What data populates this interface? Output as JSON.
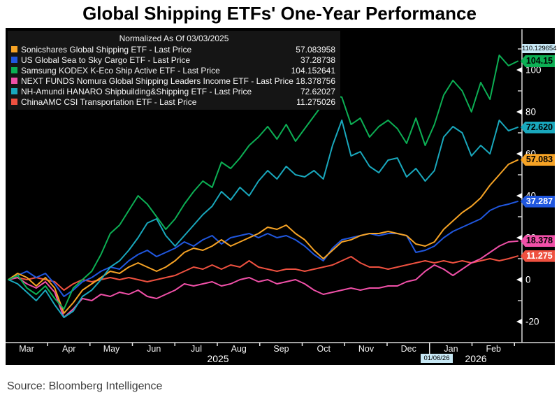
{
  "title": "Global Shipping ETFs' One-Year Performance",
  "source": "Source: Bloomberg Intelligence",
  "legend": {
    "header": "Normalized As Of 03/03/2025",
    "items": [
      {
        "label": "Sonicshares Global Shipping ETF - Last Price",
        "value": "57.083958",
        "color": "#f6a325"
      },
      {
        "label": "US Global Sea to Sky Cargo ETF - Last Price",
        "value": "37.28738",
        "color": "#2057df"
      },
      {
        "label": "Samsung KODEX K-Eco Ship Active ETF - Last Price",
        "value": "104.152641",
        "color": "#0caf54"
      },
      {
        "label": "NEXT FUNDS Nomura Global Shipping Leaders Income ETF - Last Price",
        "value": "18.378756",
        "color": "#f050a8"
      },
      {
        "label": "NH-Amundi HANARO Shipbuilding&Shipping ETF - Last Price",
        "value": "72.62027",
        "color": "#19a8bd"
      },
      {
        "label": "ChinaAMC CSI Transportation ETF - Last Price",
        "value": "11.275026",
        "color": "#ef5140"
      }
    ]
  },
  "chart_data": {
    "type": "line",
    "title": "Global Shipping ETFs' One-Year Performance",
    "normalized_as_of": "03/03/2025",
    "x_axis": {
      "months": [
        "Mar",
        "Apr",
        "May",
        "Jun",
        "Jul",
        "Aug",
        "Sep",
        "Oct",
        "Nov",
        "Dec",
        "Jan",
        "Feb"
      ],
      "years": [
        "2025",
        "2026"
      ]
    },
    "y_axis": {
      "major_ticks": [
        100,
        80,
        60,
        40,
        20,
        0,
        -20
      ],
      "minor_ticks": [
        110,
        90,
        70,
        50,
        30,
        10,
        -10
      ]
    },
    "ylim": [
      -25,
      115
    ],
    "tracker": {
      "date": "01/06/26",
      "value": "110.129654"
    },
    "z_order": [
      5,
      3,
      1,
      0,
      4,
      2
    ],
    "series": [
      {
        "name": "Sonicshares Global Shipping ETF",
        "color": "#f6a325",
        "label_text_color": "#000000",
        "last_price": 57.083958,
        "axis_label": "57.083",
        "values": [
          0,
          3,
          1,
          -3,
          1,
          -4,
          -16,
          -11,
          -5,
          -2,
          1,
          4,
          3,
          6,
          8,
          6,
          4,
          6,
          9,
          13,
          15,
          14,
          16,
          19,
          16,
          18,
          20,
          22,
          25,
          24,
          26,
          22,
          19,
          14,
          10,
          14,
          18,
          19,
          21,
          22,
          22,
          23,
          22,
          21,
          17,
          16,
          18,
          24,
          28,
          32,
          35,
          39,
          45,
          50,
          55,
          57.08
        ]
      },
      {
        "name": "US Global Sea to Sky Cargo ETF",
        "color": "#2057df",
        "label_text_color": "#ffffff",
        "last_price": 37.28738,
        "axis_label": "37.287",
        "values": [
          0,
          2,
          4,
          1,
          3,
          -2,
          -8,
          -5,
          -1,
          1,
          4,
          6,
          5,
          9,
          12,
          14,
          11,
          13,
          15,
          18,
          16,
          19,
          21,
          17,
          20,
          21,
          22,
          20,
          22,
          20,
          21,
          19,
          16,
          12,
          9,
          15,
          19,
          20,
          21,
          22,
          21,
          22,
          22,
          21,
          13,
          14,
          16,
          20,
          23,
          25,
          27,
          29,
          33,
          35,
          36,
          37.29
        ]
      },
      {
        "name": "Samsung KODEX K-Eco Ship Active ETF",
        "color": "#0caf54",
        "label_text_color": "#000000",
        "last_price": 104.152641,
        "axis_label": "104.15",
        "values": [
          0,
          2,
          -4,
          -7,
          -3,
          -9,
          -14,
          -4,
          0,
          4,
          12,
          22,
          26,
          33,
          40,
          36,
          30,
          24,
          29,
          36,
          42,
          47,
          44,
          56,
          53,
          58,
          64,
          68,
          73,
          67,
          74,
          66,
          72,
          78,
          84,
          88,
          87,
          74,
          77,
          68,
          73,
          76,
          72,
          65,
          77,
          64,
          74,
          88,
          95,
          90,
          80,
          94,
          86,
          107,
          102,
          104.15
        ]
      },
      {
        "name": "NEXT FUNDS Nomura Global Shipping Leaders Income ETF",
        "color": "#f050a8",
        "label_text_color": "#000000",
        "last_price": 18.378756,
        "axis_label": "18.378",
        "values": [
          0,
          1,
          -2,
          -4,
          -1,
          -6,
          -18,
          -14,
          -9,
          -10,
          -7,
          -8,
          -6,
          -7,
          -5,
          -8,
          -9,
          -7,
          -5,
          -2,
          -3,
          -2,
          -1,
          -3,
          -2,
          0,
          1,
          -1,
          0,
          -2,
          -1,
          0,
          -2,
          -5,
          -7,
          -6,
          -5,
          -4,
          -5,
          -4,
          -4,
          -3,
          -3,
          -1,
          0,
          4,
          7,
          5,
          2,
          5,
          8,
          10,
          13,
          16,
          18,
          18.38
        ]
      },
      {
        "name": "NH-Amundi HANARO Shipbuilding&Shipping ETF",
        "color": "#19a8bd",
        "label_text_color": "#000000",
        "last_price": 72.62027,
        "axis_label": "72.620",
        "values": [
          0,
          -2,
          -6,
          -10,
          -5,
          -12,
          -18,
          -15,
          -8,
          -5,
          0,
          6,
          9,
          14,
          20,
          27,
          29,
          21,
          16,
          21,
          26,
          31,
          35,
          42,
          38,
          44,
          40,
          47,
          52,
          48,
          54,
          50,
          49,
          52,
          48,
          64,
          76,
          59,
          61,
          54,
          51,
          57,
          58,
          49,
          53,
          47,
          52,
          68,
          73,
          70,
          59,
          64,
          60,
          76,
          71,
          72.62
        ]
      },
      {
        "name": "ChinaAMC CSI Transportation ETF",
        "color": "#ef5140",
        "label_text_color": "#ffffff",
        "last_price": 11.275026,
        "axis_label": "11.275",
        "values": [
          0,
          1,
          0,
          1,
          0,
          -1,
          -5,
          -2,
          0,
          -1,
          0,
          1,
          0,
          1,
          0,
          -1,
          0,
          1,
          2,
          4,
          6,
          5,
          7,
          5,
          7,
          6,
          9,
          6,
          5,
          4,
          5,
          5,
          4,
          5,
          6,
          7,
          9,
          11,
          8,
          6,
          6,
          5,
          6,
          7,
          8,
          9,
          8,
          9,
          8,
          9,
          8,
          9,
          10,
          9,
          10,
          11.28
        ]
      }
    ]
  }
}
